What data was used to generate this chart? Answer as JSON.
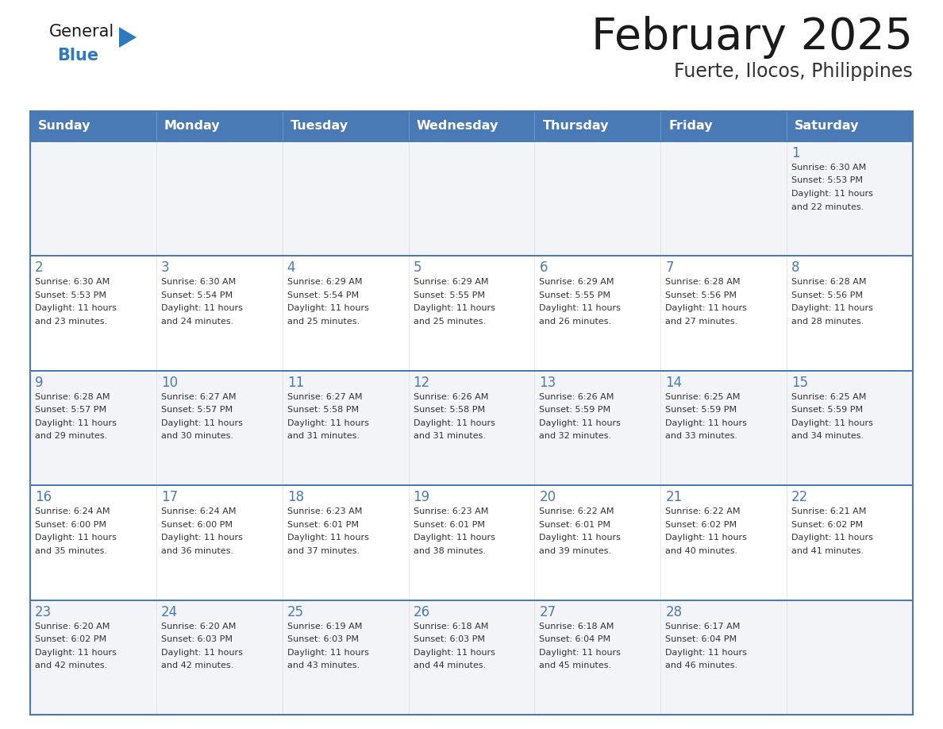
{
  "title": "February 2025",
  "subtitle": "Fuerte, Ilocos, Philippines",
  "days_of_week": [
    "Sunday",
    "Monday",
    "Tuesday",
    "Wednesday",
    "Thursday",
    "Friday",
    "Saturday"
  ],
  "header_bg": "#4a7ab5",
  "header_text": "#ffffff",
  "cell_bg_odd": "#f2f4f7",
  "cell_bg_even": "#ffffff",
  "cell_border_top": "#4a7ab5",
  "cell_border_other": "#cccccc",
  "day_number_color": "#4a7ab5",
  "info_text_color": "#333333",
  "title_color": "#1a1a1a",
  "subtitle_color": "#333333",
  "logo_general_color": "#1a1a1a",
  "logo_blue_color": "#2e7abf",
  "calendar_data": [
    [
      null,
      null,
      null,
      null,
      null,
      null,
      {
        "day": 1,
        "sunrise": "6:30 AM",
        "sunset": "5:53 PM",
        "daylight": "11 hours and 22 minutes."
      }
    ],
    [
      {
        "day": 2,
        "sunrise": "6:30 AM",
        "sunset": "5:53 PM",
        "daylight": "11 hours and 23 minutes."
      },
      {
        "day": 3,
        "sunrise": "6:30 AM",
        "sunset": "5:54 PM",
        "daylight": "11 hours and 24 minutes."
      },
      {
        "day": 4,
        "sunrise": "6:29 AM",
        "sunset": "5:54 PM",
        "daylight": "11 hours and 25 minutes."
      },
      {
        "day": 5,
        "sunrise": "6:29 AM",
        "sunset": "5:55 PM",
        "daylight": "11 hours and 25 minutes."
      },
      {
        "day": 6,
        "sunrise": "6:29 AM",
        "sunset": "5:55 PM",
        "daylight": "11 hours and 26 minutes."
      },
      {
        "day": 7,
        "sunrise": "6:28 AM",
        "sunset": "5:56 PM",
        "daylight": "11 hours and 27 minutes."
      },
      {
        "day": 8,
        "sunrise": "6:28 AM",
        "sunset": "5:56 PM",
        "daylight": "11 hours and 28 minutes."
      }
    ],
    [
      {
        "day": 9,
        "sunrise": "6:28 AM",
        "sunset": "5:57 PM",
        "daylight": "11 hours and 29 minutes."
      },
      {
        "day": 10,
        "sunrise": "6:27 AM",
        "sunset": "5:57 PM",
        "daylight": "11 hours and 30 minutes."
      },
      {
        "day": 11,
        "sunrise": "6:27 AM",
        "sunset": "5:58 PM",
        "daylight": "11 hours and 31 minutes."
      },
      {
        "day": 12,
        "sunrise": "6:26 AM",
        "sunset": "5:58 PM",
        "daylight": "11 hours and 31 minutes."
      },
      {
        "day": 13,
        "sunrise": "6:26 AM",
        "sunset": "5:59 PM",
        "daylight": "11 hours and 32 minutes."
      },
      {
        "day": 14,
        "sunrise": "6:25 AM",
        "sunset": "5:59 PM",
        "daylight": "11 hours and 33 minutes."
      },
      {
        "day": 15,
        "sunrise": "6:25 AM",
        "sunset": "5:59 PM",
        "daylight": "11 hours and 34 minutes."
      }
    ],
    [
      {
        "day": 16,
        "sunrise": "6:24 AM",
        "sunset": "6:00 PM",
        "daylight": "11 hours and 35 minutes."
      },
      {
        "day": 17,
        "sunrise": "6:24 AM",
        "sunset": "6:00 PM",
        "daylight": "11 hours and 36 minutes."
      },
      {
        "day": 18,
        "sunrise": "6:23 AM",
        "sunset": "6:01 PM",
        "daylight": "11 hours and 37 minutes."
      },
      {
        "day": 19,
        "sunrise": "6:23 AM",
        "sunset": "6:01 PM",
        "daylight": "11 hours and 38 minutes."
      },
      {
        "day": 20,
        "sunrise": "6:22 AM",
        "sunset": "6:01 PM",
        "daylight": "11 hours and 39 minutes."
      },
      {
        "day": 21,
        "sunrise": "6:22 AM",
        "sunset": "6:02 PM",
        "daylight": "11 hours and 40 minutes."
      },
      {
        "day": 22,
        "sunrise": "6:21 AM",
        "sunset": "6:02 PM",
        "daylight": "11 hours and 41 minutes."
      }
    ],
    [
      {
        "day": 23,
        "sunrise": "6:20 AM",
        "sunset": "6:02 PM",
        "daylight": "11 hours and 42 minutes."
      },
      {
        "day": 24,
        "sunrise": "6:20 AM",
        "sunset": "6:03 PM",
        "daylight": "11 hours and 42 minutes."
      },
      {
        "day": 25,
        "sunrise": "6:19 AM",
        "sunset": "6:03 PM",
        "daylight": "11 hours and 43 minutes."
      },
      {
        "day": 26,
        "sunrise": "6:18 AM",
        "sunset": "6:03 PM",
        "daylight": "11 hours and 44 minutes."
      },
      {
        "day": 27,
        "sunrise": "6:18 AM",
        "sunset": "6:04 PM",
        "daylight": "11 hours and 45 minutes."
      },
      {
        "day": 28,
        "sunrise": "6:17 AM",
        "sunset": "6:04 PM",
        "daylight": "11 hours and 46 minutes."
      },
      null
    ]
  ]
}
